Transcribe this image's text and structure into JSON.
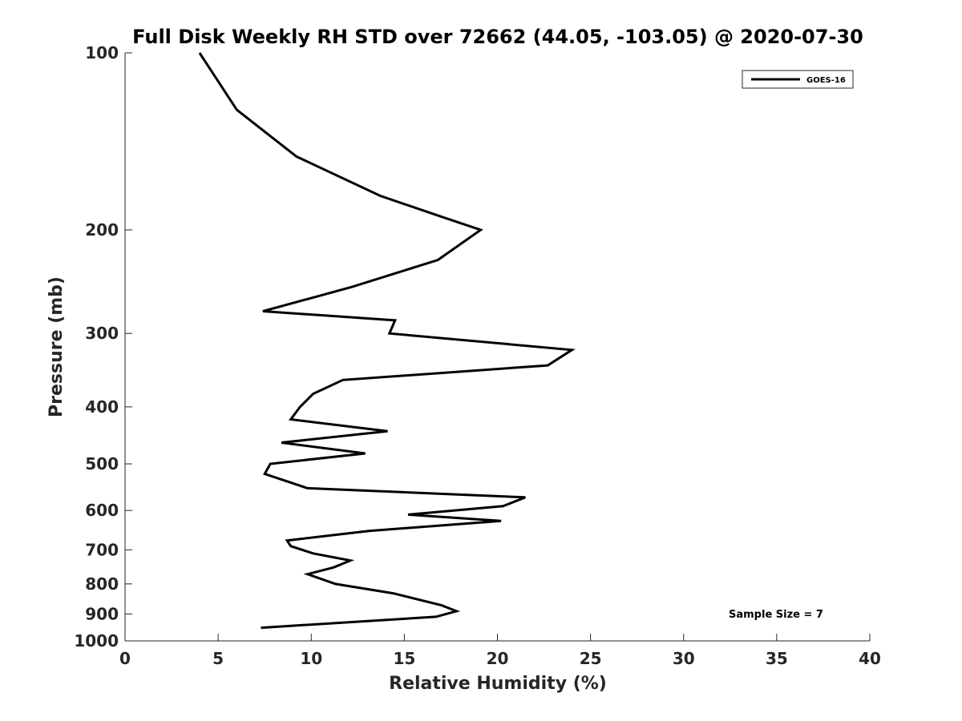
{
  "chart_data": {
    "type": "line",
    "title": "Full Disk Weekly RH STD over 72662 (44.05, -103.05) @ 2020-07-30",
    "xlabel": "Relative Humidity (%)",
    "ylabel": "Pressure (mb)",
    "xlim": [
      0,
      40
    ],
    "ylim": [
      100,
      1000
    ],
    "y_scale": "log",
    "y_reversed": true,
    "x_ticks": [
      0,
      5,
      10,
      15,
      20,
      25,
      30,
      35,
      40
    ],
    "y_ticks": [
      100,
      200,
      300,
      400,
      500,
      600,
      700,
      800,
      900,
      1000
    ],
    "grid": false,
    "legend_position": "top-right",
    "series": [
      {
        "name": "GOES-16",
        "color": "#000000",
        "points": [
          {
            "x": 4.0,
            "y": 100
          },
          {
            "x": 6.0,
            "y": 125
          },
          {
            "x": 9.2,
            "y": 150
          },
          {
            "x": 13.7,
            "y": 175
          },
          {
            "x": 17.0,
            "y": 190
          },
          {
            "x": 19.1,
            "y": 200
          },
          {
            "x": 16.8,
            "y": 225
          },
          {
            "x": 12.2,
            "y": 250
          },
          {
            "x": 7.4,
            "y": 275
          },
          {
            "x": 14.5,
            "y": 285
          },
          {
            "x": 14.2,
            "y": 300
          },
          {
            "x": 24.0,
            "y": 320
          },
          {
            "x": 22.7,
            "y": 340
          },
          {
            "x": 11.7,
            "y": 360
          },
          {
            "x": 10.1,
            "y": 380
          },
          {
            "x": 9.4,
            "y": 400
          },
          {
            "x": 8.9,
            "y": 420
          },
          {
            "x": 14.1,
            "y": 440
          },
          {
            "x": 8.4,
            "y": 460
          },
          {
            "x": 12.9,
            "y": 480
          },
          {
            "x": 7.8,
            "y": 500
          },
          {
            "x": 7.5,
            "y": 520
          },
          {
            "x": 9.8,
            "y": 550
          },
          {
            "x": 21.5,
            "y": 570
          },
          {
            "x": 20.3,
            "y": 590
          },
          {
            "x": 15.2,
            "y": 610
          },
          {
            "x": 20.2,
            "y": 625
          },
          {
            "x": 13.1,
            "y": 650
          },
          {
            "x": 8.7,
            "y": 675
          },
          {
            "x": 8.9,
            "y": 690
          },
          {
            "x": 10.1,
            "y": 710
          },
          {
            "x": 12.1,
            "y": 730
          },
          {
            "x": 11.2,
            "y": 750
          },
          {
            "x": 9.8,
            "y": 770
          },
          {
            "x": 11.3,
            "y": 800
          },
          {
            "x": 14.4,
            "y": 830
          },
          {
            "x": 17.0,
            "y": 870
          },
          {
            "x": 17.8,
            "y": 890
          },
          {
            "x": 16.7,
            "y": 910
          },
          {
            "x": 7.3,
            "y": 950
          }
        ]
      }
    ],
    "annotations": [
      "Sample Size = 7"
    ]
  }
}
